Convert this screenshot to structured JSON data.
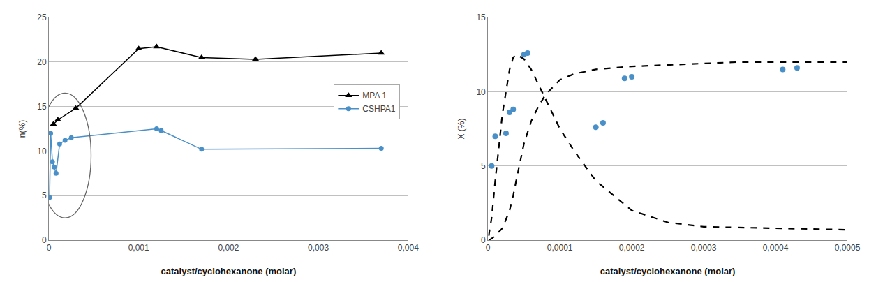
{
  "chart_data": [
    {
      "type": "line",
      "x_label": "catalyst/cyclohexanone (molar)",
      "y_label": "n(%)",
      "xlim": [
        0,
        0.004
      ],
      "ylim": [
        0,
        25
      ],
      "xticks": [
        0,
        {
          "value": 0.001,
          "label": "0,001"
        },
        {
          "value": 0.002,
          "label": "0,002"
        },
        {
          "value": 0.003,
          "label": "0,003"
        },
        {
          "value": 0.004,
          "label": "0,004"
        }
      ],
      "yticks": [
        0,
        5,
        10,
        15,
        20,
        25
      ],
      "grid": "y",
      "legend": "right",
      "series": [
        {
          "name": "MPA 1",
          "color": "#000000",
          "marker": "triangle",
          "line_style": "solid",
          "x": [
            5e-05,
            0.0001,
            0.0003,
            0.001,
            0.0012,
            0.0017,
            0.0023,
            0.0037
          ],
          "values": [
            13.0,
            13.5,
            14.8,
            21.5,
            21.7,
            20.5,
            20.3,
            21.0
          ]
        },
        {
          "name": "CSHPA1",
          "color": "#4a90c8",
          "marker": "circle",
          "line_style": "solid",
          "x": [
            8e-06,
            2e-05,
            4e-05,
            6e-05,
            8e-05,
            0.00012,
            0.00018,
            0.00025,
            0.0012,
            0.00125,
            0.0017,
            0.0037
          ],
          "values": [
            4.8,
            12.0,
            8.8,
            8.2,
            7.5,
            10.8,
            11.2,
            11.5,
            12.5,
            12.3,
            10.2,
            10.3
          ]
        }
      ],
      "ellipse": {
        "x": 0.00018,
        "y": 9.5,
        "width": 0.00058,
        "height": 14.0
      }
    },
    {
      "type": "line",
      "x_label": "catalyst/cyclohexanone (molar)",
      "y_label": "X (%)",
      "xlim": [
        0,
        0.0005
      ],
      "ylim": [
        0,
        15
      ],
      "xticks": [
        0,
        {
          "value": 0.0001,
          "label": "0,0001"
        },
        {
          "value": 0.0002,
          "label": "0,0002"
        },
        {
          "value": 0.0003,
          "label": "0,0003"
        },
        {
          "value": 0.0004,
          "label": "0,0004"
        },
        {
          "value": 0.0005,
          "label": "0,0005"
        }
      ],
      "yticks": [
        0,
        5,
        10,
        15
      ],
      "grid": "y",
      "series": [
        {
          "type": "line",
          "color": "#000000",
          "line_style": "dashed",
          "x": [
            1e-06,
            5e-06,
            1e-05,
            2e-05,
            3e-05,
            3.5e-05,
            4e-05,
            5e-05,
            6e-05,
            7e-05,
            8e-05,
            0.0001,
            0.00012,
            0.00015,
            0.0002,
            0.00025,
            0.0003,
            0.00035,
            0.0004,
            0.00045,
            0.0005
          ],
          "values": [
            0.3,
            1.5,
            4.0,
            8.5,
            11.5,
            12.3,
            12.5,
            12.2,
            11.5,
            10.5,
            9.5,
            7.5,
            6.0,
            4.0,
            2.0,
            1.2,
            0.9,
            0.85,
            0.8,
            0.75,
            0.7
          ]
        },
        {
          "type": "line",
          "color": "#000000",
          "line_style": "dashed",
          "x": [
            1e-06,
            5e-06,
            1e-05,
            2e-05,
            3e-05,
            3.5e-05,
            4e-05,
            5e-05,
            6e-05,
            7e-05,
            8e-05,
            0.0001,
            0.00012,
            0.00015,
            0.0002,
            0.00025,
            0.0003,
            0.00035,
            0.0004,
            0.00045,
            0.0005
          ],
          "values": [
            0.0,
            0.1,
            0.3,
            0.8,
            2.0,
            3.0,
            4.2,
            6.5,
            8.0,
            9.0,
            9.8,
            10.8,
            11.2,
            11.5,
            11.7,
            11.8,
            11.9,
            12.0,
            12.0,
            12.0,
            12.0
          ]
        },
        {
          "type": "scatter",
          "color": "#4a90c8",
          "marker": "circle",
          "x": [
            5e-06,
            1e-05,
            2.5e-05,
            3e-05,
            3.5e-05,
            5e-05,
            5.5e-05,
            0.00015,
            0.00016,
            0.00019,
            0.0002,
            0.00041,
            0.00043
          ],
          "values": [
            5.0,
            7.0,
            7.2,
            8.6,
            8.8,
            12.5,
            12.6,
            7.6,
            7.9,
            10.9,
            11.0,
            11.5,
            11.6
          ]
        }
      ]
    }
  ]
}
